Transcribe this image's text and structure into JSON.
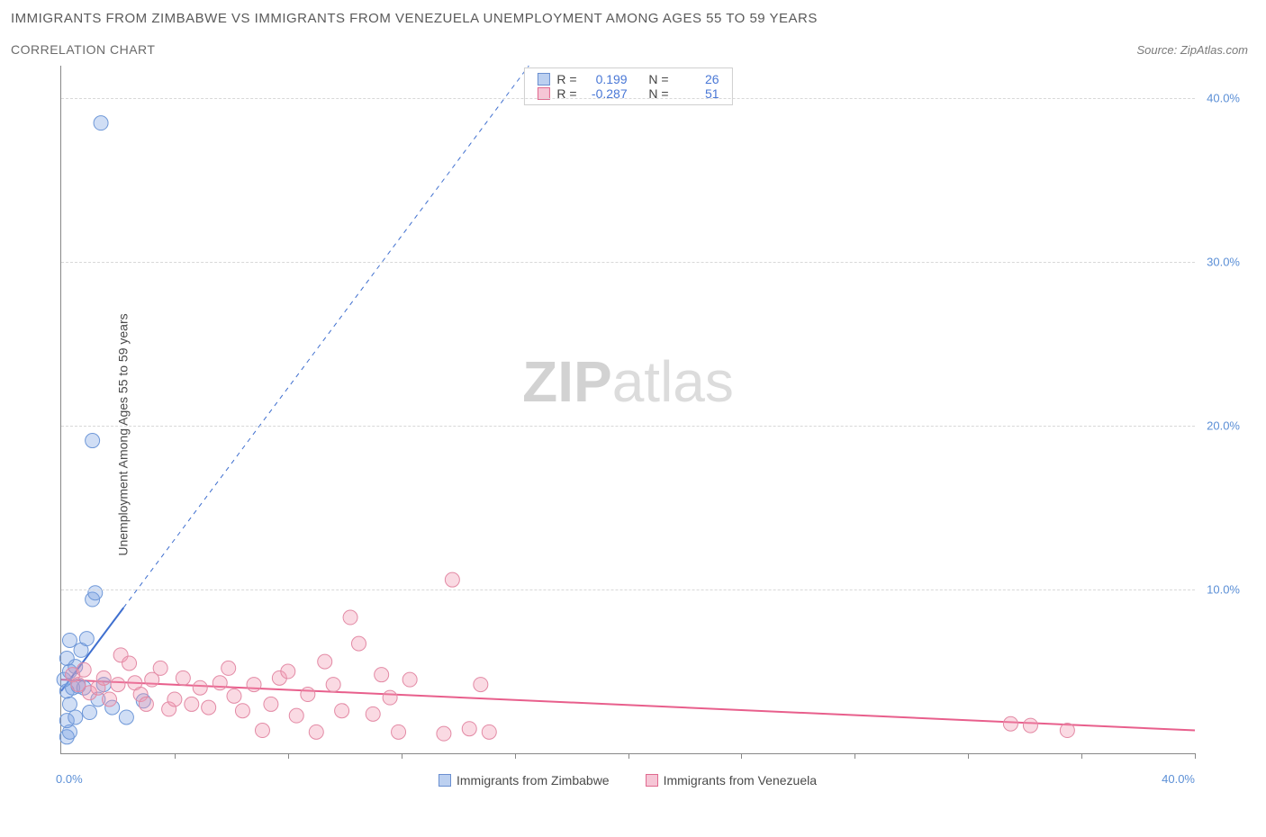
{
  "title": "IMMIGRANTS FROM ZIMBABWE VS IMMIGRANTS FROM VENEZUELA UNEMPLOYMENT AMONG AGES 55 TO 59 YEARS",
  "subtitle": "CORRELATION CHART",
  "source": "Source: ZipAtlas.com",
  "y_axis_label": "Unemployment Among Ages 55 to 59 years",
  "watermark_bold": "ZIP",
  "watermark_light": "atlas",
  "chart": {
    "type": "scatter",
    "xlim": [
      0,
      40
    ],
    "ylim": [
      0,
      42
    ],
    "x_origin_label": "0.0%",
    "x_max_label": "40.0%",
    "x_tick_positions": [
      4,
      8,
      12,
      16,
      20,
      24,
      28,
      32,
      36,
      40
    ],
    "y_ticks": [
      {
        "value": 10,
        "label": "10.0%"
      },
      {
        "value": 20,
        "label": "20.0%"
      },
      {
        "value": 30,
        "label": "30.0%"
      },
      {
        "value": 40,
        "label": "40.0%"
      }
    ],
    "grid_color": "#d8d8d8",
    "background_color": "#ffffff",
    "series": [
      {
        "name": "Immigrants from Zimbabwe",
        "key": "zimbabwe",
        "color_fill": "rgba(120,160,225,0.35)",
        "color_stroke": "#6f98d8",
        "swatch_fill": "#bcd0f0",
        "swatch_border": "#6a8fd0",
        "marker_radius": 8,
        "stats": {
          "R_label": "R =",
          "R": "0.199",
          "N_label": "N =",
          "N": "26"
        },
        "trend": {
          "x1": 0,
          "y1": 3.8,
          "x2": 16.5,
          "y2": 42,
          "solid_until_x": 2.2,
          "color": "#3f6fcf",
          "width": 2
        },
        "points": [
          {
            "x": 0.2,
            "y": 1.0
          },
          {
            "x": 0.3,
            "y": 1.3
          },
          {
            "x": 0.2,
            "y": 2.0
          },
          {
            "x": 0.5,
            "y": 2.2
          },
          {
            "x": 0.3,
            "y": 3.0
          },
          {
            "x": 0.2,
            "y": 3.8
          },
          {
            "x": 0.4,
            "y": 4.0
          },
          {
            "x": 0.6,
            "y": 4.1
          },
          {
            "x": 0.1,
            "y": 4.5
          },
          {
            "x": 0.8,
            "y": 4.0
          },
          {
            "x": 0.3,
            "y": 5.0
          },
          {
            "x": 0.5,
            "y": 5.3
          },
          {
            "x": 0.2,
            "y": 5.8
          },
          {
            "x": 0.7,
            "y": 6.3
          },
          {
            "x": 0.3,
            "y": 6.9
          },
          {
            "x": 0.9,
            "y": 7.0
          },
          {
            "x": 1.0,
            "y": 2.5
          },
          {
            "x": 1.3,
            "y": 3.3
          },
          {
            "x": 1.5,
            "y": 4.2
          },
          {
            "x": 1.8,
            "y": 2.8
          },
          {
            "x": 2.3,
            "y": 2.2
          },
          {
            "x": 2.9,
            "y": 3.2
          },
          {
            "x": 1.1,
            "y": 9.4
          },
          {
            "x": 1.2,
            "y": 9.8
          },
          {
            "x": 1.1,
            "y": 19.1
          },
          {
            "x": 1.4,
            "y": 38.5
          }
        ]
      },
      {
        "name": "Immigrants from Venezuela",
        "key": "venezuela",
        "color_fill": "rgba(240,150,175,0.35)",
        "color_stroke": "#e38aa5",
        "swatch_fill": "#f6c6d6",
        "swatch_border": "#e06a8f",
        "marker_radius": 8,
        "stats": {
          "R_label": "R =",
          "R": "-0.287",
          "N_label": "N =",
          "N": "51"
        },
        "trend": {
          "x1": 0,
          "y1": 4.5,
          "x2": 40,
          "y2": 1.4,
          "solid_until_x": 40,
          "color": "#e85f8c",
          "width": 2
        },
        "points": [
          {
            "x": 0.4,
            "y": 4.8
          },
          {
            "x": 0.6,
            "y": 4.2
          },
          {
            "x": 0.8,
            "y": 5.1
          },
          {
            "x": 1.0,
            "y": 3.7
          },
          {
            "x": 1.3,
            "y": 4.0
          },
          {
            "x": 1.5,
            "y": 4.6
          },
          {
            "x": 1.7,
            "y": 3.3
          },
          {
            "x": 2.0,
            "y": 4.2
          },
          {
            "x": 2.1,
            "y": 6.0
          },
          {
            "x": 2.4,
            "y": 5.5
          },
          {
            "x": 2.6,
            "y": 4.3
          },
          {
            "x": 2.8,
            "y": 3.6
          },
          {
            "x": 3.0,
            "y": 3.0
          },
          {
            "x": 3.2,
            "y": 4.5
          },
          {
            "x": 3.5,
            "y": 5.2
          },
          {
            "x": 3.8,
            "y": 2.7
          },
          {
            "x": 4.0,
            "y": 3.3
          },
          {
            "x": 4.3,
            "y": 4.6
          },
          {
            "x": 4.6,
            "y": 3.0
          },
          {
            "x": 4.9,
            "y": 4.0
          },
          {
            "x": 5.2,
            "y": 2.8
          },
          {
            "x": 5.6,
            "y": 4.3
          },
          {
            "x": 5.9,
            "y": 5.2
          },
          {
            "x": 6.1,
            "y": 3.5
          },
          {
            "x": 6.4,
            "y": 2.6
          },
          {
            "x": 6.8,
            "y": 4.2
          },
          {
            "x": 7.1,
            "y": 1.4
          },
          {
            "x": 7.4,
            "y": 3.0
          },
          {
            "x": 7.7,
            "y": 4.6
          },
          {
            "x": 8.0,
            "y": 5.0
          },
          {
            "x": 8.3,
            "y": 2.3
          },
          {
            "x": 8.7,
            "y": 3.6
          },
          {
            "x": 9.0,
            "y": 1.3
          },
          {
            "x": 9.3,
            "y": 5.6
          },
          {
            "x": 9.6,
            "y": 4.2
          },
          {
            "x": 9.9,
            "y": 2.6
          },
          {
            "x": 10.2,
            "y": 8.3
          },
          {
            "x": 10.5,
            "y": 6.7
          },
          {
            "x": 11.0,
            "y": 2.4
          },
          {
            "x": 11.3,
            "y": 4.8
          },
          {
            "x": 11.6,
            "y": 3.4
          },
          {
            "x": 11.9,
            "y": 1.3
          },
          {
            "x": 12.3,
            "y": 4.5
          },
          {
            "x": 13.5,
            "y": 1.2
          },
          {
            "x": 13.8,
            "y": 10.6
          },
          {
            "x": 14.4,
            "y": 1.5
          },
          {
            "x": 14.8,
            "y": 4.2
          },
          {
            "x": 15.1,
            "y": 1.3
          },
          {
            "x": 33.5,
            "y": 1.8
          },
          {
            "x": 34.2,
            "y": 1.7
          },
          {
            "x": 35.5,
            "y": 1.4
          }
        ]
      }
    ]
  }
}
